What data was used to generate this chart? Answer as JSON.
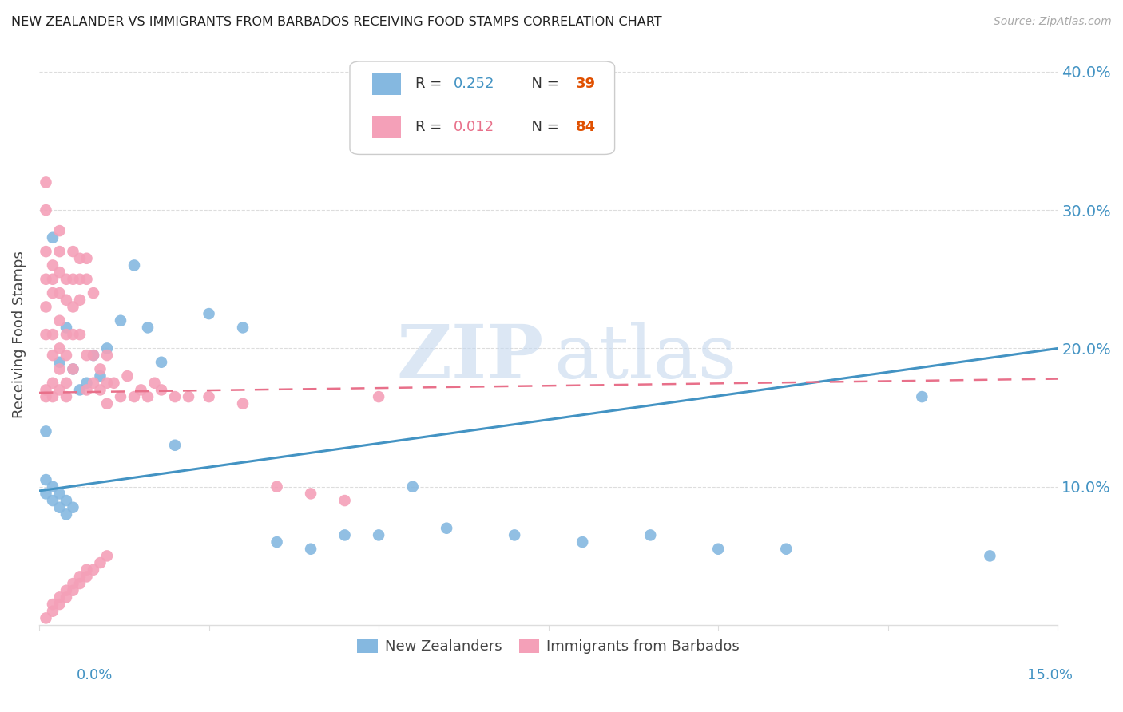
{
  "title": "NEW ZEALANDER VS IMMIGRANTS FROM BARBADOS RECEIVING FOOD STAMPS CORRELATION CHART",
  "source": "Source: ZipAtlas.com",
  "ylabel": "Receiving Food Stamps",
  "color_blue": "#85b8e0",
  "color_pink": "#f4a0b8",
  "color_blue_line": "#4393c3",
  "color_pink_line": "#e8708a",
  "color_grid": "#dddddd",
  "color_tick_label": "#4393c3",
  "xlim": [
    0.0,
    0.15
  ],
  "ylim": [
    0.0,
    0.42
  ],
  "yticks": [
    0.1,
    0.2,
    0.3,
    0.4
  ],
  "ytick_labels": [
    "10.0%",
    "20.0%",
    "30.0%",
    "40.0%"
  ],
  "xtick_left_label": "0.0%",
  "xtick_right_label": "15.0%",
  "legend1_r": "R = 0.252",
  "legend1_n": "N = 39",
  "legend2_r": "R = 0.012",
  "legend2_n": "N = 84",
  "legend1_r_color": "#4393c3",
  "legend1_n_color": "#e05000",
  "legend2_r_color": "#e8708a",
  "legend2_n_color": "#e05000",
  "blue_line_y0": 0.097,
  "blue_line_y1": 0.2,
  "pink_line_y0": 0.168,
  "pink_line_y1": 0.178,
  "watermark_zip_color": "#c5d8ee",
  "watermark_atlas_color": "#c5d8ee"
}
